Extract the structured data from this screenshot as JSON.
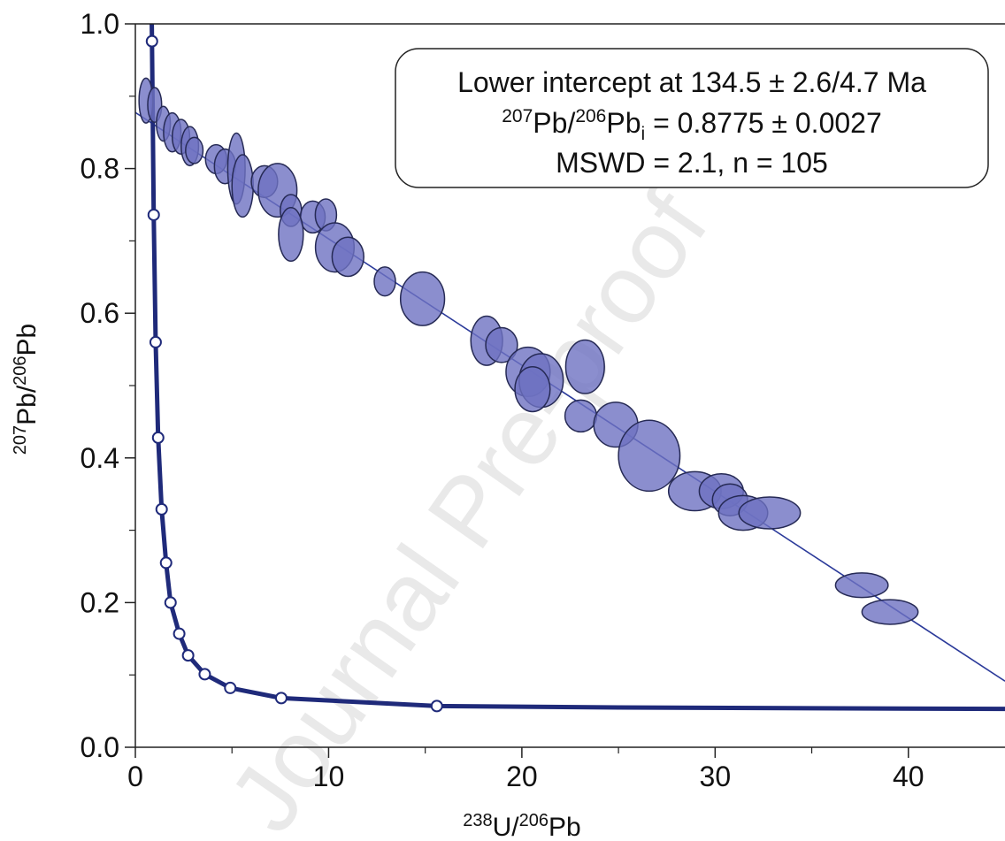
{
  "chart_data": {
    "type": "concordia",
    "annotation": {
      "line1": "Lower intercept at 134.5 ± 2.6/4.7 Ma",
      "line2": [
        "207",
        "Pb/",
        "206",
        "Pb",
        "i",
        " = 0.8775 ± 0.0027"
      ],
      "line3": "MSWD = 2.1, n = 105"
    },
    "xlabel": [
      "238",
      "U/",
      "206",
      "Pb"
    ],
    "ylabel": [
      "207",
      "Pb/",
      "206",
      "Pb"
    ],
    "watermark": "Journal Pre-proof",
    "xlim": [
      0,
      45
    ],
    "ylim": [
      0,
      1
    ],
    "xticks": [
      0,
      10,
      20,
      30,
      40
    ],
    "yticks": [
      {
        "value": 0,
        "label": "0.0"
      },
      0.2,
      0.4,
      0.6,
      0.8,
      {
        "value": 1,
        "label": "1.0"
      }
    ],
    "xminorticks": [
      5,
      15,
      25,
      35
    ],
    "yminorticks": [
      0.1,
      0.3,
      0.5,
      0.7,
      0.9
    ],
    "ellipses": {
      "color": "#6e72c2",
      "x": [
        0.55,
        1.0,
        1.45,
        1.91,
        2.36,
        2.82,
        3.05,
        4.18,
        4.64,
        5.23,
        5.55,
        6.68,
        7.36,
        8.05,
        9.18,
        9.86,
        8.05,
        10.32,
        11.0,
        12.91,
        14.86,
        18.18,
        18.95,
        20.32,
        21.0,
        20.55,
        23.27,
        23.05,
        24.86,
        26.59,
        28.95,
        30.32,
        30.77,
        31.45,
        32.82,
        37.59,
        39.05
      ],
      "values": [
        0.894,
        0.888,
        0.862,
        0.85,
        0.844,
        0.831,
        0.825,
        0.813,
        0.803,
        0.8,
        0.776,
        0.782,
        0.77,
        0.742,
        0.733,
        0.736,
        0.709,
        0.691,
        0.678,
        0.644,
        0.62,
        0.562,
        0.556,
        0.519,
        0.507,
        0.495,
        0.526,
        0.458,
        0.446,
        0.403,
        0.354,
        0.354,
        0.342,
        0.324,
        0.324,
        0.224,
        0.187
      ],
      "x_err": [
        0.36,
        0.36,
        0.36,
        0.45,
        0.45,
        0.45,
        0.45,
        0.55,
        0.55,
        0.45,
        0.55,
        0.68,
        1.0,
        0.55,
        0.64,
        0.55,
        0.64,
        1.0,
        0.82,
        0.55,
        1.14,
        0.82,
        0.82,
        1.14,
        1.14,
        0.91,
        1.0,
        0.82,
        1.14,
        1.59,
        1.36,
        1.14,
        0.91,
        1.27,
        1.59,
        1.36,
        1.45
      ],
      "y_err": [
        0.031,
        0.024,
        0.024,
        0.027,
        0.024,
        0.027,
        0.018,
        0.02,
        0.024,
        0.049,
        0.043,
        0.022,
        0.037,
        0.022,
        0.022,
        0.022,
        0.037,
        0.034,
        0.027,
        0.02,
        0.037,
        0.034,
        0.024,
        0.034,
        0.037,
        0.031,
        0.037,
        0.022,
        0.031,
        0.049,
        0.027,
        0.024,
        0.022,
        0.024,
        0.022,
        0.017,
        0.017
      ]
    },
    "regression": {
      "color": "#2b3a9a",
      "x": [
        0,
        45
      ],
      "values": [
        0.8775,
        0.0914
      ]
    },
    "concordia": {
      "color": "#1f2a7a",
      "x": [
        0.85,
        0.86,
        0.95,
        1.05,
        1.18,
        1.36,
        1.59,
        1.82,
        2.27,
        2.73,
        3.59,
        4.91,
        7.55,
        15.6,
        25,
        35,
        45
      ],
      "values": [
        1.0,
        0.976,
        0.736,
        0.56,
        0.428,
        0.329,
        0.255,
        0.2,
        0.157,
        0.127,
        0.101,
        0.082,
        0.068,
        0.057,
        0.055,
        0.054,
        0.053
      ]
    },
    "age_markers": {
      "x": [
        0.86,
        0.95,
        1.05,
        1.18,
        1.36,
        1.59,
        1.82,
        2.27,
        2.73,
        3.59,
        4.91,
        7.55,
        15.6
      ],
      "values": [
        0.976,
        0.736,
        0.56,
        0.428,
        0.329,
        0.255,
        0.2,
        0.157,
        0.127,
        0.101,
        0.082,
        0.068,
        0.057
      ]
    }
  }
}
